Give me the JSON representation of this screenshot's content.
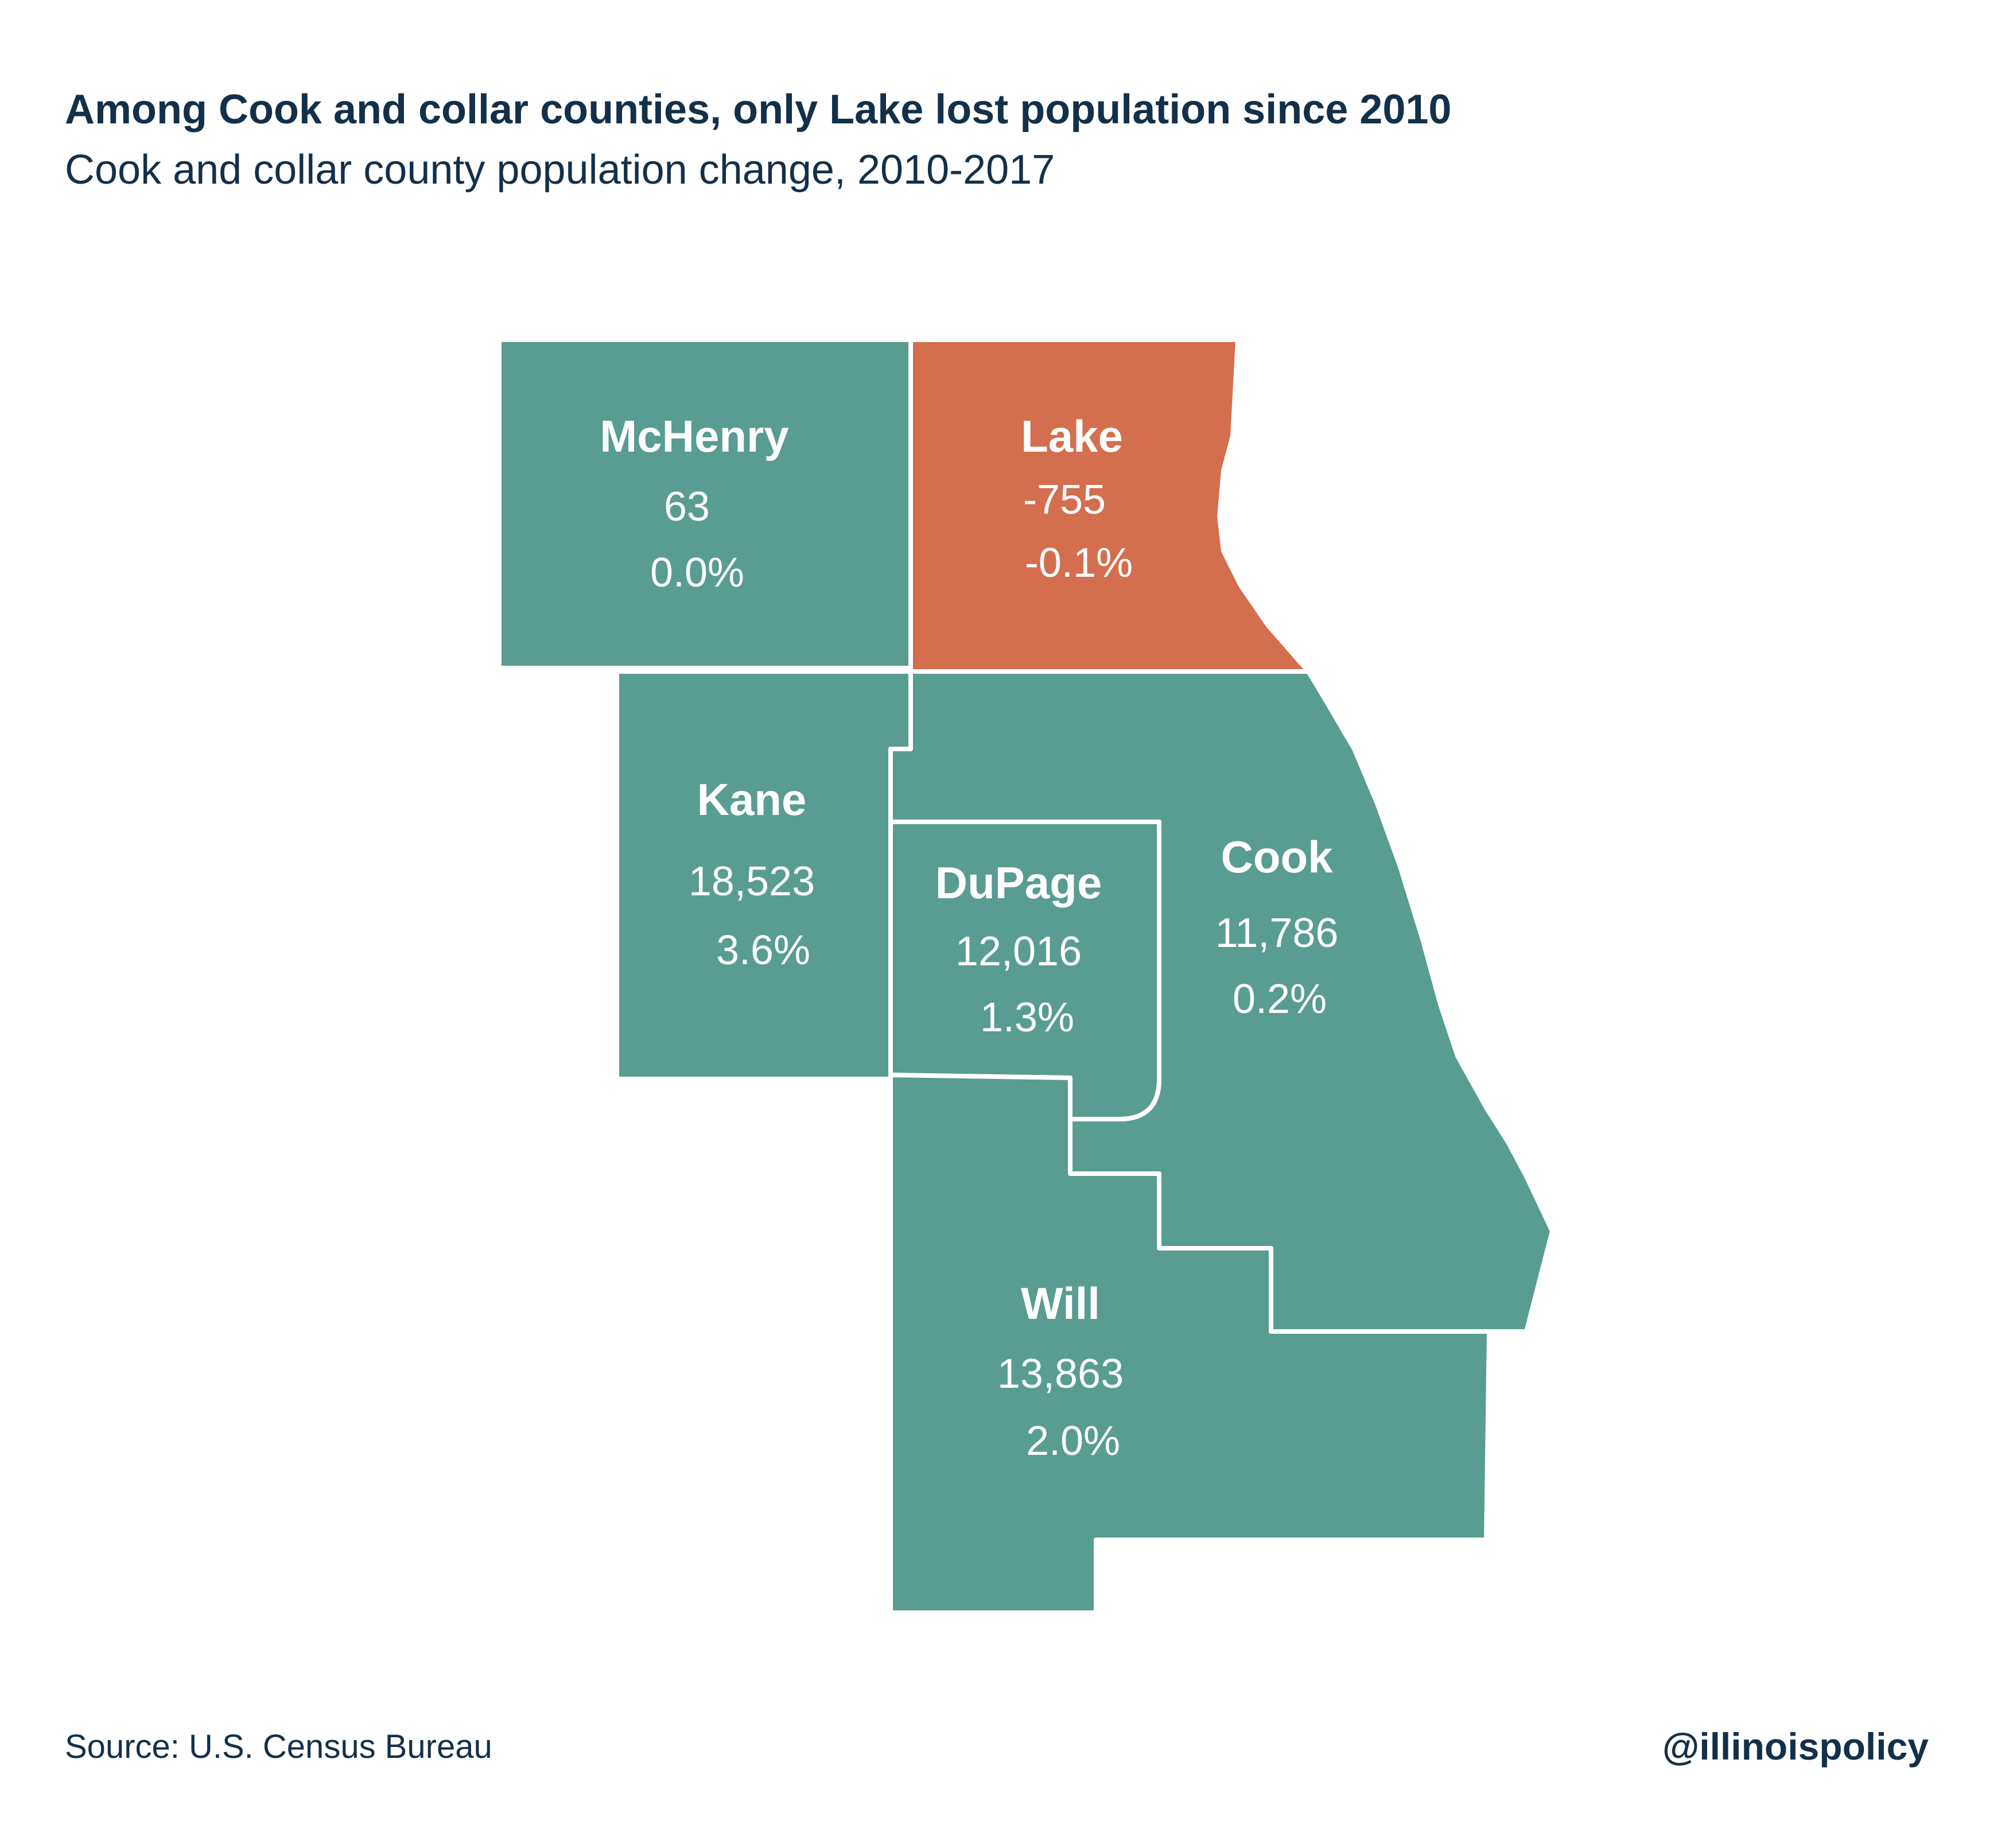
{
  "header": {
    "title": "Among Cook and collar counties, only Lake lost population since 2010",
    "subtitle": "Cook and collar county population change, 2010-2017"
  },
  "footer": {
    "source": "Source: U.S. Census Bureau",
    "handle": "@illinoispolicy"
  },
  "colors": {
    "gain": "#599c92",
    "loss": "#d36e4e",
    "text": "#13304a"
  },
  "counties": {
    "mchenry": {
      "name": "McHenry",
      "change": "63",
      "pct": "0.0%",
      "status": "gain"
    },
    "lake": {
      "name": "Lake",
      "change": "-755",
      "pct": "-0.1%",
      "status": "loss"
    },
    "kane": {
      "name": "Kane",
      "change": "18,523",
      "pct": "3.6%",
      "status": "gain"
    },
    "dupage": {
      "name": "DuPage",
      "change": "12,016",
      "pct": "1.3%",
      "status": "gain"
    },
    "cook": {
      "name": "Cook",
      "change": "11,786",
      "pct": "0.2%",
      "status": "gain"
    },
    "will": {
      "name": "Will",
      "change": "13,863",
      "pct": "2.0%",
      "status": "gain"
    }
  }
}
